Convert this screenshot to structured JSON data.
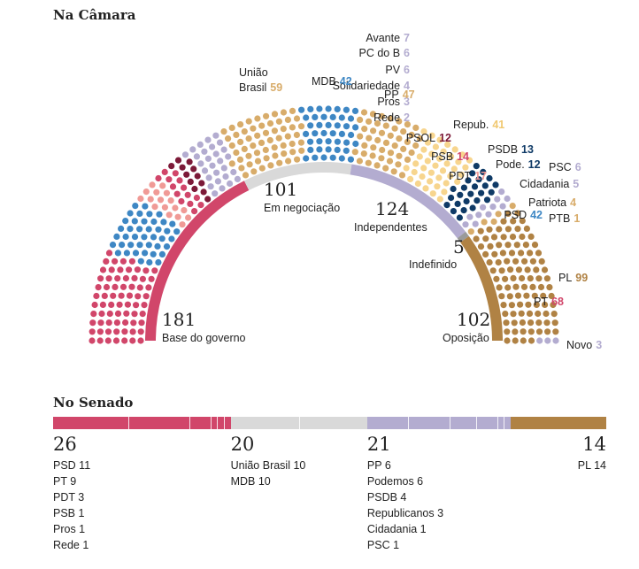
{
  "camara": {
    "title": "Na Câmara",
    "parties": [
      {
        "id": "pt",
        "name": "PT",
        "seats": 68,
        "color": "#d1466a",
        "num_color": "#d1466a",
        "label_side": "left"
      },
      {
        "id": "psd",
        "name": "PSD",
        "seats": 42,
        "color": "#3e87c4",
        "num_color": "#3e87c4",
        "label_side": "left"
      },
      {
        "id": "pdt",
        "name": "PDT",
        "seats": 17,
        "color": "#f09a96",
        "num_color": "#f09a96",
        "label_side": "left"
      },
      {
        "id": "psb",
        "name": "PSB",
        "seats": 14,
        "color": "#d1466a",
        "num_color": "#d1466a",
        "label_side": "left"
      },
      {
        "id": "psol",
        "name": "PSOL",
        "seats": 12,
        "color": "#7c1a38",
        "num_color": "#7c1a38",
        "label_side": "left"
      },
      {
        "id": "rede",
        "name": "Rede",
        "seats": 2,
        "color": "#b3acd0",
        "num_color": "#b3acd0",
        "label_side": "left"
      },
      {
        "id": "pros",
        "name": "Pros",
        "seats": 3,
        "color": "#b3acd0",
        "num_color": "#b3acd0",
        "label_side": "left"
      },
      {
        "id": "solidariedade",
        "name": "Solidariedade",
        "seats": 4,
        "color": "#b3acd0",
        "num_color": "#b3acd0",
        "label_side": "left"
      },
      {
        "id": "pv",
        "name": "PV",
        "seats": 6,
        "color": "#b3acd0",
        "num_color": "#b3acd0",
        "label_side": "left"
      },
      {
        "id": "pcdob",
        "name": "PC do B",
        "seats": 6,
        "color": "#b3acd0",
        "num_color": "#b3acd0",
        "label_side": "left"
      },
      {
        "id": "avante",
        "name": "Avante",
        "seats": 7,
        "color": "#b3acd0",
        "num_color": "#b3acd0",
        "label_side": "left"
      },
      {
        "id": "uniao",
        "name": "União Brasil",
        "line1": "União",
        "line2": "Brasil",
        "seats": 59,
        "color": "#d8ac6a",
        "num_color": "#d8ac6a",
        "label_side": "left"
      },
      {
        "id": "mdb",
        "name": "MDB",
        "seats": 42,
        "color": "#3e87c4",
        "num_color": "#3e87c4",
        "label_side": "left"
      },
      {
        "id": "pp",
        "name": "PP",
        "seats": 47,
        "color": "#d8ac6a",
        "num_color": "#d8ac6a",
        "label_side": "left"
      },
      {
        "id": "repub",
        "name": "Repub.",
        "seats": 41,
        "color": "#f7d58e",
        "num_color": "#f0c870",
        "label_side": "left"
      },
      {
        "id": "psdb",
        "name": "PSDB",
        "seats": 13,
        "color": "#0f3a66",
        "num_color": "#0f3a66",
        "label_side": "left"
      },
      {
        "id": "podemos",
        "name": "Pode.",
        "seats": 12,
        "color": "#0f3a66",
        "num_color": "#0f3a66",
        "label_side": "left"
      },
      {
        "id": "psc",
        "name": "PSC",
        "seats": 6,
        "color": "#b3acd0",
        "num_color": "#b3acd0",
        "label_side": "left"
      },
      {
        "id": "cidadania",
        "name": "Cidadania",
        "seats": 5,
        "color": "#b3acd0",
        "num_color": "#b3acd0",
        "label_side": "left"
      },
      {
        "id": "patriota",
        "name": "Patriota",
        "seats": 4,
        "color": "#d8ac6a",
        "num_color": "#d8ac6a",
        "label_side": "left"
      },
      {
        "id": "ptb",
        "name": "PTB",
        "seats": 1,
        "color": "#d8ac6a",
        "num_color": "#d8ac6a",
        "label_side": "left"
      },
      {
        "id": "pl",
        "name": "PL",
        "seats": 99,
        "color": "#b08244",
        "num_color": "#b08244",
        "label_side": "left"
      },
      {
        "id": "novo",
        "name": "Novo",
        "seats": 3,
        "color": "#b3acd0",
        "num_color": "#b3acd0",
        "label_side": "left"
      }
    ],
    "groups": [
      {
        "id": "base",
        "count": "181",
        "label": "Base do governo",
        "value": 181,
        "color": "#d1466a"
      },
      {
        "id": "negociacao",
        "count": "101",
        "label": "Em negociação",
        "value": 101,
        "color": "#d9d9d9"
      },
      {
        "id": "independentes",
        "count": "124",
        "label": "Independentes",
        "value": 124,
        "color": "#b3acd0"
      },
      {
        "id": "indefinido",
        "count": "5",
        "label": "Indefinido",
        "value": 5,
        "color": "#9a9a9a"
      },
      {
        "id": "oposicao",
        "count": "102",
        "label": "Oposição",
        "value": 102,
        "color": "#b08244"
      }
    ]
  },
  "senado": {
    "title": "No Senado",
    "groups": [
      {
        "id": "base",
        "total": "26",
        "color": "#d1466a",
        "value": 26,
        "items": [
          "PSD 11",
          "PT 9",
          "PDT 3",
          "PSB 1",
          "Pros 1",
          "Rede 1"
        ],
        "splits": [
          11,
          9,
          3,
          1,
          1,
          1
        ]
      },
      {
        "id": "negociacao",
        "total": "20",
        "color": "#d9d9d9",
        "value": 20,
        "items": [
          "União Brasil 10",
          "MDB 10"
        ],
        "splits": [
          10,
          10
        ]
      },
      {
        "id": "independentes",
        "total": "21",
        "color": "#b3acd0",
        "value": 21,
        "items": [
          "PP 6",
          "Podemos 6",
          "PSDB 4",
          "Republicanos 3",
          "Cidadania 1",
          "PSC 1"
        ],
        "splits": [
          6,
          6,
          4,
          3,
          1,
          1
        ]
      },
      {
        "id": "oposicao",
        "total": "14",
        "color": "#b08244",
        "value": 14,
        "items": [
          "PL 14"
        ],
        "splits": [
          14
        ]
      }
    ]
  },
  "chart_data": {
    "type": "parliament",
    "title": "Na Câmara",
    "series": [
      {
        "name": "PT",
        "value": 68
      },
      {
        "name": "PSD",
        "value": 42
      },
      {
        "name": "PDT",
        "value": 17
      },
      {
        "name": "PSB",
        "value": 14
      },
      {
        "name": "PSOL",
        "value": 12
      },
      {
        "name": "Rede",
        "value": 2
      },
      {
        "name": "Pros",
        "value": 3
      },
      {
        "name": "Solidariedade",
        "value": 4
      },
      {
        "name": "PV",
        "value": 6
      },
      {
        "name": "PC do B",
        "value": 6
      },
      {
        "name": "Avante",
        "value": 7
      },
      {
        "name": "União Brasil",
        "value": 59
      },
      {
        "name": "MDB",
        "value": 42
      },
      {
        "name": "PP",
        "value": 47
      },
      {
        "name": "Repub.",
        "value": 41
      },
      {
        "name": "PSDB",
        "value": 13
      },
      {
        "name": "Pode.",
        "value": 12
      },
      {
        "name": "PSC",
        "value": 6
      },
      {
        "name": "Cidadania",
        "value": 5
      },
      {
        "name": "Patriota",
        "value": 4
      },
      {
        "name": "PTB",
        "value": 1
      },
      {
        "name": "PL",
        "value": 99
      },
      {
        "name": "Novo",
        "value": 3
      }
    ],
    "groups": [
      {
        "name": "Base do governo",
        "value": 181
      },
      {
        "name": "Em negociação",
        "value": 101
      },
      {
        "name": "Independentes",
        "value": 124
      },
      {
        "name": "Indefinido",
        "value": 5
      },
      {
        "name": "Oposição",
        "value": 102
      }
    ]
  }
}
